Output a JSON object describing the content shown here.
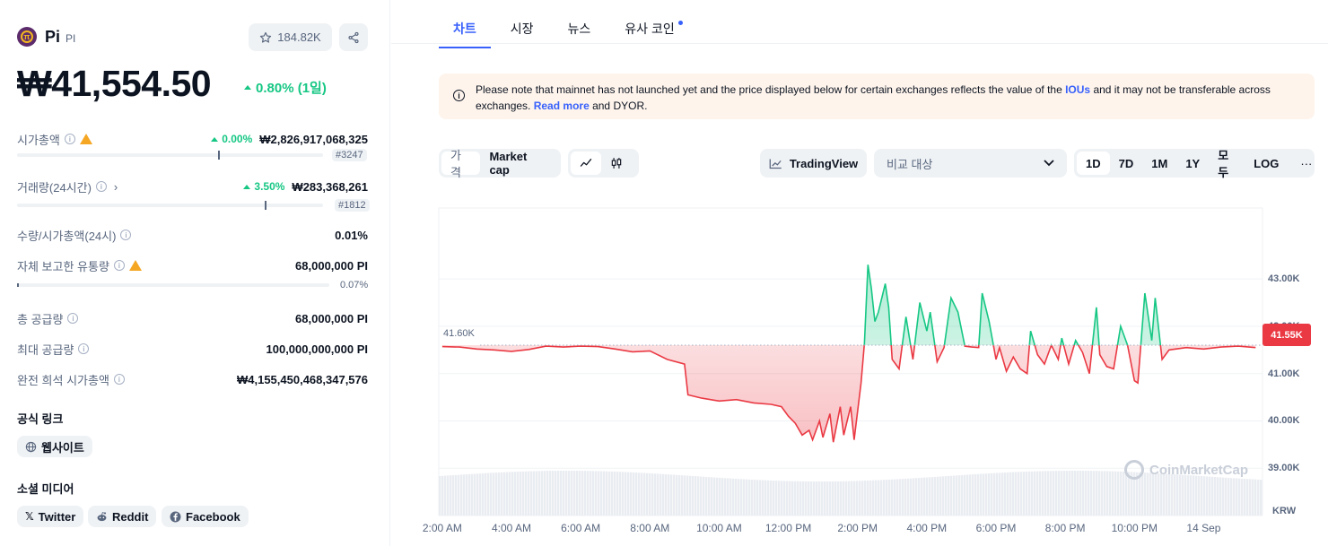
{
  "coin": {
    "name": "Pi",
    "symbol": "PI",
    "watchlist_count": "184.82K",
    "price": "₩41,554.50",
    "change": "0.80% (1일)"
  },
  "stats": {
    "market_cap": {
      "label": "시가총액",
      "pct": "0.00%",
      "value": "₩2,826,917,068,325",
      "rank": "#3247"
    },
    "volume": {
      "label": "거래량(24시간)",
      "pct": "3.50%",
      "value": "₩283,368,261",
      "rank": "#1812"
    },
    "vol_mcap": {
      "label": "수량/시가총액(24시)",
      "value": "0.01%"
    },
    "self_reported": {
      "label": "자체 보고한 유통량",
      "value": "68,000,000 PI",
      "pct": "0.07%"
    },
    "total_supply": {
      "label": "총 공급량",
      "value": "68,000,000 PI"
    },
    "max_supply": {
      "label": "최대 공급량",
      "value": "100,000,000,000 PI"
    },
    "fdv": {
      "label": "완전 희석 시가총액",
      "value": "₩4,155,450,468,347,576"
    }
  },
  "links": {
    "official_title": "공식 링크",
    "website": "웹사이트",
    "social_title": "소셜 미디어",
    "twitter": "Twitter",
    "reddit": "Reddit",
    "facebook": "Facebook"
  },
  "tabs": [
    "차트",
    "시장",
    "뉴스",
    "유사 코인"
  ],
  "notice": {
    "part1": "Please note that mainnet has not launched yet and the price displayed below for certain exchanges reflects the value of the ",
    "link1": "IOUs",
    "part2": " and it may not be transferable across exchanges. ",
    "link2": "Read more",
    "part3": " and DYOR."
  },
  "controls": {
    "price_tab": "가격",
    "mcap_tab": "Market cap",
    "tradingview": "TradingView",
    "compare_placeholder": "비교 대상",
    "ranges": [
      "1D",
      "7D",
      "1M",
      "1Y",
      "모두"
    ],
    "log": "LOG",
    "more": "···"
  },
  "chart_data": {
    "type": "line",
    "currency": "KRW",
    "reference_value": 41600,
    "reference_label": "41.60K",
    "current_value": 41554.5,
    "current_label": "41.55K",
    "ylim": [
      38000,
      44500
    ],
    "y_ticks": [
      "43.00K",
      "42.00K",
      "41.00K",
      "40.00K",
      "39.00K"
    ],
    "y_tick_values": [
      43000,
      42000,
      41000,
      40000,
      39000
    ],
    "x_ticks": [
      "2:00 AM",
      "4:00 AM",
      "6:00 AM",
      "8:00 AM",
      "10:00 AM",
      "12:00 PM",
      "2:00 PM",
      "4:00 PM",
      "6:00 PM",
      "8:00 PM",
      "10:00 PM",
      "14 Sep"
    ],
    "x_tick_hours": [
      2,
      4,
      6,
      8,
      10,
      12,
      14,
      16,
      18,
      20,
      22,
      24
    ],
    "x_range_hours": [
      1.9,
      25.7
    ],
    "series": [
      {
        "x": [
          2.0,
          2.5,
          3.0,
          3.5,
          4.0,
          4.5,
          5.0,
          5.5,
          6.0,
          6.5,
          7.0,
          7.5,
          8.0,
          8.5,
          9.0,
          9.1,
          9.5,
          10.0,
          10.5,
          11.0,
          11.5,
          11.8,
          12.0,
          12.2,
          12.4,
          12.6,
          12.7,
          12.9,
          13.0,
          13.2,
          13.3,
          13.5,
          13.6,
          13.8,
          13.9,
          14.1,
          14.2,
          14.3,
          14.4,
          14.5,
          14.6,
          14.8,
          14.9,
          15.0,
          15.2,
          15.4,
          15.6,
          15.8,
          16.0,
          16.1,
          16.3,
          16.5,
          16.7,
          16.9,
          17.1,
          17.3,
          17.5,
          17.6,
          17.8,
          18.0,
          18.1,
          18.3,
          18.5,
          18.7,
          18.9,
          19.0,
          19.2,
          19.4,
          19.6,
          19.8,
          19.9,
          20.1,
          20.3,
          20.5,
          20.7,
          20.9,
          21.0,
          21.2,
          21.4,
          21.6,
          21.8,
          22.0,
          22.1,
          22.3,
          22.5,
          22.6,
          22.8,
          23.0,
          23.5,
          24.0,
          24.5,
          25.0,
          25.5
        ],
        "y": [
          41570,
          41560,
          41520,
          41500,
          41470,
          41510,
          41580,
          41560,
          41580,
          41570,
          41520,
          41460,
          41480,
          41300,
          41200,
          40550,
          40480,
          40420,
          40450,
          40380,
          40350,
          40300,
          40100,
          39950,
          39700,
          39800,
          39600,
          40000,
          39650,
          40150,
          39550,
          40300,
          39700,
          40300,
          39600,
          40800,
          41650,
          43300,
          42800,
          42100,
          42300,
          42900,
          42400,
          41300,
          41100,
          42200,
          41300,
          42500,
          41900,
          42300,
          41250,
          41550,
          42600,
          42300,
          41580,
          41560,
          41550,
          42700,
          42100,
          41300,
          41550,
          41050,
          41350,
          41100,
          41000,
          41900,
          41400,
          41200,
          41600,
          41300,
          41750,
          41200,
          41700,
          41450,
          41000,
          42400,
          41400,
          41150,
          41100,
          42000,
          41600,
          40850,
          40800,
          42700,
          41700,
          42600,
          41300,
          41500,
          41550,
          41520,
          41560,
          41580,
          41550
        ]
      }
    ]
  }
}
